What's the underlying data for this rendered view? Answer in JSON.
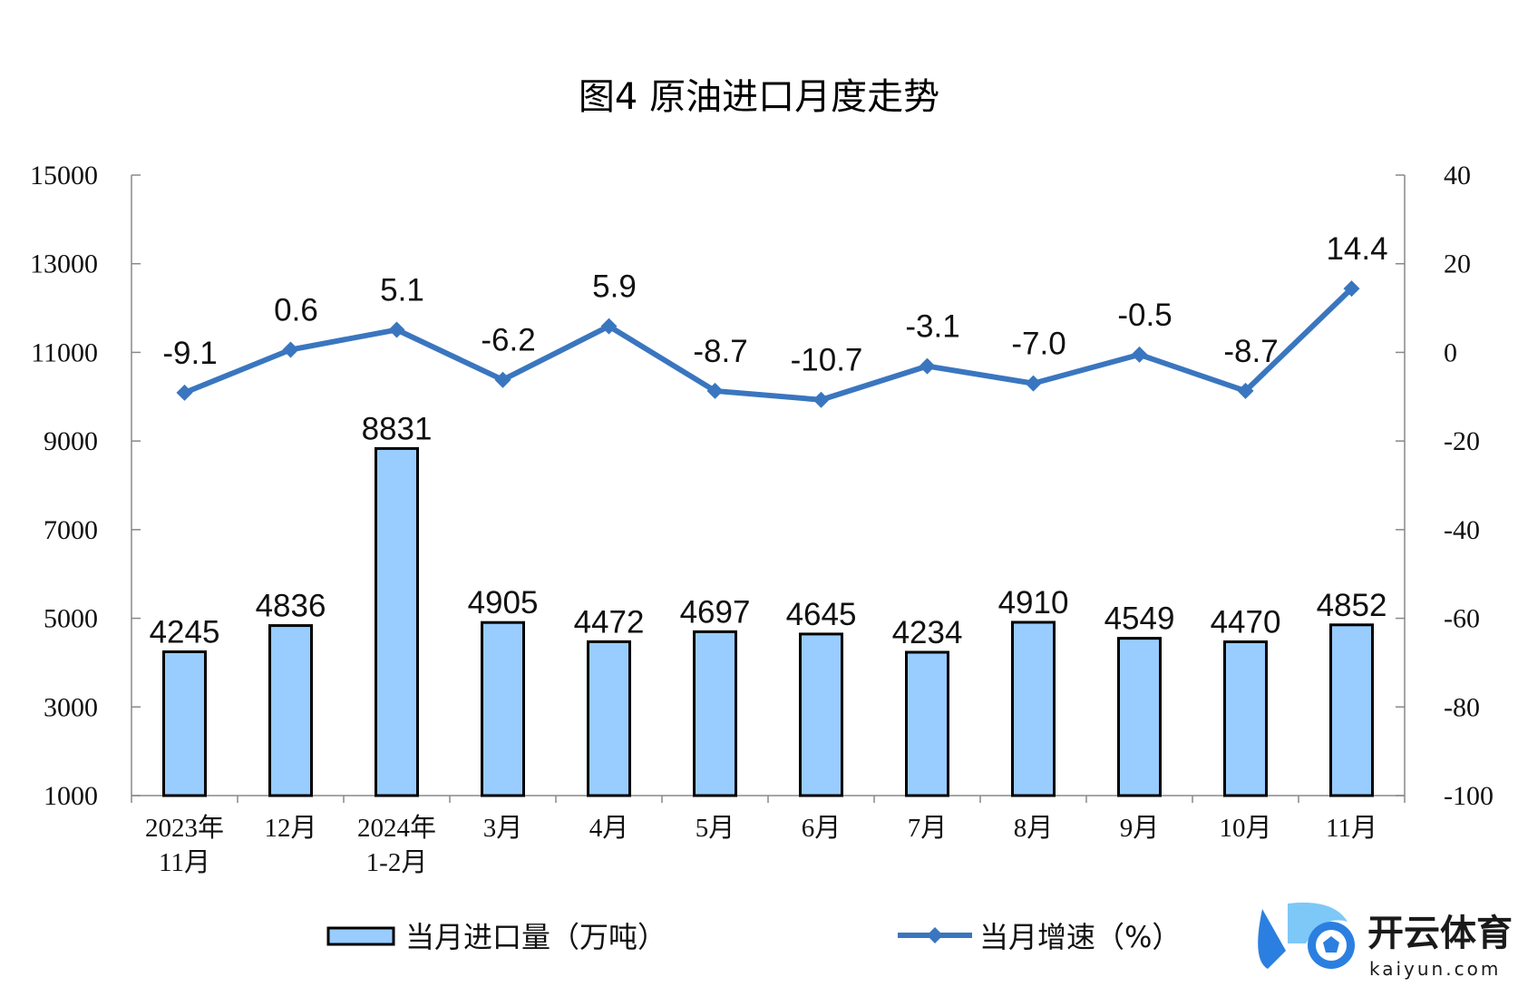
{
  "chart_data": {
    "type": "bar+line",
    "title": "图4  原油进口月度走势",
    "categories": [
      [
        "2023年",
        "11月"
      ],
      [
        "12月"
      ],
      [
        "2024年",
        "1-2月"
      ],
      [
        "3月"
      ],
      [
        "4月"
      ],
      [
        "5月"
      ],
      [
        "6月"
      ],
      [
        "7月"
      ],
      [
        "8月"
      ],
      [
        "9月"
      ],
      [
        "10月"
      ],
      [
        "11月"
      ]
    ],
    "bar_series": {
      "name": "当月进口量（万吨）",
      "values": [
        4245,
        4836,
        8831,
        4905,
        4472,
        4697,
        4645,
        4234,
        4910,
        4549,
        4470,
        4852
      ],
      "labels": [
        "4245",
        "4836",
        "8831",
        "4905",
        "4472",
        "4697",
        "4645",
        "4234",
        "4910",
        "4549",
        "4470",
        "4852"
      ],
      "color": "#99CCFF",
      "stroke": "#000000"
    },
    "line_series": {
      "name": "当月增速（%）",
      "values": [
        -9.1,
        0.6,
        5.1,
        -6.2,
        5.9,
        -8.7,
        -10.7,
        -3.1,
        -7.0,
        -0.5,
        -8.7,
        14.4
      ],
      "labels": [
        "-9.1",
        "0.6",
        "5.1",
        "-6.2",
        "5.9",
        "-8.7",
        "-10.7",
        "-3.1",
        "-7.0",
        "-0.5",
        "-8.7",
        "14.4"
      ],
      "color": "#3A76BF",
      "marker": "diamond"
    },
    "y_left": {
      "min": 1000,
      "max": 15000,
      "ticks": [
        "15000",
        "13000",
        "11000",
        "9000",
        "7000",
        "5000",
        "3000",
        "1000"
      ]
    },
    "y_right": {
      "min": -100,
      "max": 40,
      "ticks": [
        "40",
        "20",
        "0",
        "-20",
        "-40",
        "-60",
        "-80",
        "-100"
      ]
    },
    "grid": false,
    "legend_placement": "bottom"
  },
  "watermark": {
    "brand": "开云体育",
    "domain": "kaiyun.com",
    "logo_letter": "K",
    "colors": {
      "primary": "#2B7FE0",
      "light": "#7EC8F8"
    }
  }
}
